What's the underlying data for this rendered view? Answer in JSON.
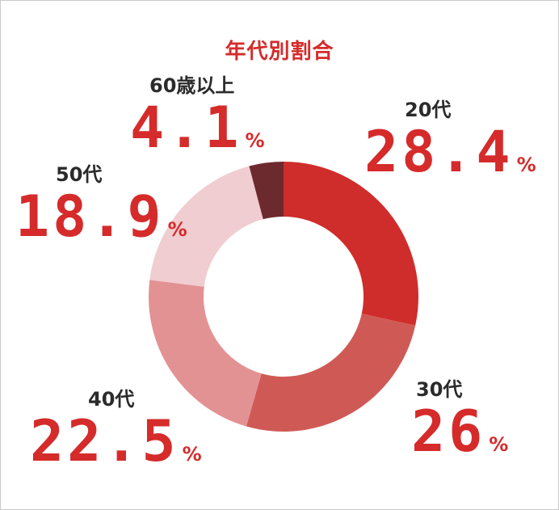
{
  "chart_data": {
    "type": "pie",
    "title": "年代別割合",
    "unit": "%",
    "categories": [
      "20代",
      "30代",
      "40代",
      "50代",
      "60歳以上"
    ],
    "values": [
      28.4,
      26,
      22.5,
      18.9,
      4.1
    ],
    "value_labels": [
      "28.4",
      "26",
      "22.5",
      "18.9",
      "4.1"
    ],
    "colors": [
      "#cf2d2b",
      "#cf5a55",
      "#e39294",
      "#f0cdd0",
      "#6d2a2e"
    ]
  }
}
